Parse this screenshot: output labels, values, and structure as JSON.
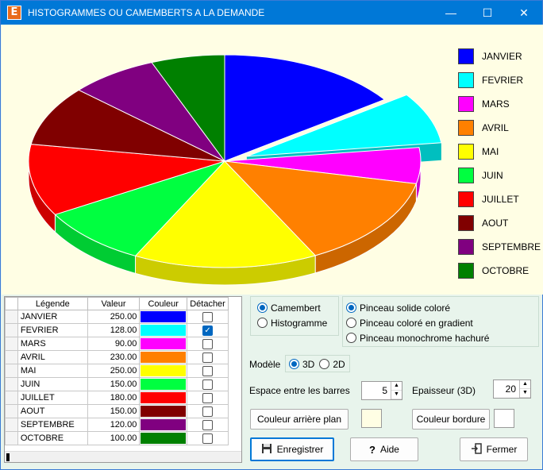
{
  "window": {
    "title": "HISTOGRAMMES OU CAMEMBERTS A LA DEMANDE",
    "app_letter": "E",
    "minimize": "—",
    "maximize": "☐",
    "close": "✕"
  },
  "chart_data": {
    "type": "pie",
    "categories": [
      "JANVIER",
      "FEVRIER",
      "MARS",
      "AVRIL",
      "MAI",
      "JUIN",
      "JUILLET",
      "AOUT",
      "SEPTEMBRE",
      "OCTOBRE"
    ],
    "values": [
      250,
      128,
      90,
      230,
      250,
      150,
      180,
      150,
      120,
      100
    ],
    "colors": [
      "#0000ff",
      "#00ffff",
      "#ff00ff",
      "#ff8000",
      "#ffff00",
      "#00ff40",
      "#ff0000",
      "#800000",
      "#800080",
      "#008000"
    ],
    "exploded": [
      false,
      true,
      false,
      false,
      false,
      false,
      false,
      false,
      false,
      false
    ],
    "style": "3d",
    "background": "#fffee4"
  },
  "grid": {
    "headers": [
      "Légende",
      "Valeur",
      "Couleur",
      "Détacher"
    ],
    "rows": [
      {
        "label": "JANVIER",
        "value": "250.00",
        "color": "#0000ff",
        "detach": false
      },
      {
        "label": "FEVRIER",
        "value": "128.00",
        "color": "#00ffff",
        "detach": true
      },
      {
        "label": "MARS",
        "value": "90.00",
        "color": "#ff00ff",
        "detach": false
      },
      {
        "label": "AVRIL",
        "value": "230.00",
        "color": "#ff8000",
        "detach": false
      },
      {
        "label": "MAI",
        "value": "250.00",
        "color": "#ffff00",
        "detach": false
      },
      {
        "label": "JUIN",
        "value": "150.00",
        "color": "#00ff40",
        "detach": false
      },
      {
        "label": "JUILLET",
        "value": "180.00",
        "color": "#ff0000",
        "detach": false
      },
      {
        "label": "AOUT",
        "value": "150.00",
        "color": "#800000",
        "detach": false
      },
      {
        "label": "SEPTEMBRE",
        "value": "120.00",
        "color": "#800080",
        "detach": false
      },
      {
        "label": "OCTOBRE",
        "value": "100.00",
        "color": "#008000",
        "detach": false
      }
    ]
  },
  "chart_type": {
    "options": [
      "Camembert",
      "Histogramme"
    ],
    "selected": "Camembert"
  },
  "brush": {
    "options": [
      "Pinceau solide coloré",
      "Pinceau coloré en gradient",
      "Pinceau monochrome hachuré"
    ],
    "selected": "Pinceau solide coloré"
  },
  "model": {
    "label": "Modèle",
    "options": [
      "3D",
      "2D"
    ],
    "selected": "3D"
  },
  "spacing": {
    "label": "Espace entre les barres",
    "value": "5"
  },
  "thickness": {
    "label": "Epaisseur (3D)",
    "value": "20"
  },
  "buttons": {
    "bg_color": "Couleur arrière plan",
    "border_color": "Couleur bordure",
    "save": "Enregistrer",
    "help": "Aide",
    "close": "Fermer"
  },
  "swatches": {
    "background": "#fffee4",
    "border": "#ffffff"
  }
}
